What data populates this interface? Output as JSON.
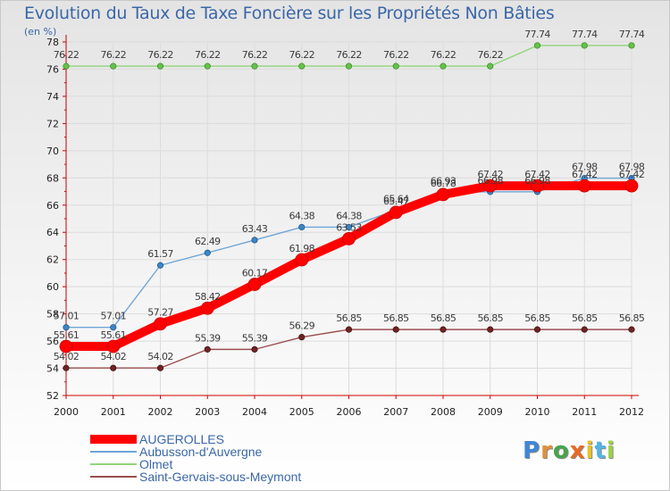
{
  "title": "Evolution du Taux de Taxe Foncière sur les Propriétés Non Bâties",
  "unit_label": "(en %)",
  "logo": {
    "text": "Proxiti",
    "letter_colors": [
      "#3f86d6",
      "#e0913b",
      "#4aa34a",
      "#e86a22",
      "#e6c22a",
      "#54b3e6",
      "#9ad248"
    ]
  },
  "chart_data": {
    "type": "line",
    "title": "Evolution du Taux de Taxe Foncière sur les Propriétés Non Bâties",
    "ylabel": "(en %)",
    "xlabel": "",
    "ylim": [
      52,
      78
    ],
    "yticks": [
      52,
      54,
      56,
      58,
      60,
      62,
      64,
      66,
      68,
      70,
      72,
      74,
      76,
      78
    ],
    "x": [
      "2000",
      "2001",
      "2002",
      "2003",
      "2004",
      "2005",
      "2006",
      "2007",
      "2008",
      "2009",
      "2010",
      "2011",
      "2012"
    ],
    "grid": true,
    "legend_position": "bottom-left",
    "series": [
      {
        "name": "AUGEROLLES",
        "color": "#ff0000",
        "line_width": 10,
        "marker_radius": 7,
        "marker_color": "#ff0000",
        "marker_stroke": "#cc0000",
        "values": [
          55.61,
          55.61,
          57.27,
          58.42,
          60.17,
          61.98,
          63.53,
          65.47,
          66.78,
          67.42,
          67.42,
          67.42,
          67.42
        ],
        "labels": [
          "55.61",
          "55.61",
          "57.27",
          "58.42",
          "60.17",
          "61.98",
          "63.53",
          "65.47",
          "66.78",
          "67.42",
          "67.42",
          "67.42",
          "67.42"
        ]
      },
      {
        "name": "Aubusson-d'Auvergne",
        "color": "#6ea6d7",
        "line_width": 1.4,
        "marker_radius": 3.2,
        "marker_color": "#3d86c6",
        "marker_stroke": "#215a8c",
        "values": [
          57.01,
          57.01,
          61.57,
          62.49,
          63.43,
          64.38,
          64.38,
          65.64,
          66.93,
          66.98,
          66.98,
          67.98,
          67.98
        ],
        "labels": [
          "57.01",
          "57.01",
          "61.57",
          "62.49",
          "63.43",
          "64.38",
          "64.38",
          "65.64",
          "66.93",
          "66.98",
          "66.98",
          "67.98",
          "67.98"
        ]
      },
      {
        "name": "Olmet",
        "color": "#8fd47a",
        "line_width": 1.4,
        "marker_radius": 3.2,
        "marker_color": "#66c24a",
        "marker_stroke": "#3f8f2a",
        "values": [
          76.22,
          76.22,
          76.22,
          76.22,
          76.22,
          76.22,
          76.22,
          76.22,
          76.22,
          76.22,
          77.74,
          77.74,
          77.74
        ],
        "labels": [
          "76.22",
          "76.22",
          "76.22",
          "76.22",
          "76.22",
          "76.22",
          "76.22",
          "76.22",
          "76.22",
          "76.22",
          "77.74",
          "77.74",
          "77.74"
        ]
      },
      {
        "name": "Saint-Gervais-sous-Meymont",
        "color": "#9a4e4e",
        "line_width": 1.4,
        "marker_radius": 3.2,
        "marker_color": "#6e2424",
        "marker_stroke": "#4a1212",
        "values": [
          54.02,
          54.02,
          54.02,
          55.39,
          55.39,
          56.29,
          56.85,
          56.85,
          56.85,
          56.85,
          56.85,
          56.85,
          56.85
        ],
        "labels": [
          "54.02",
          "54.02",
          "54.02",
          "55.39",
          "55.39",
          "56.29",
          "56.85",
          "56.85",
          "56.85",
          "56.85",
          "56.85",
          "56.85",
          "56.85"
        ]
      }
    ]
  }
}
